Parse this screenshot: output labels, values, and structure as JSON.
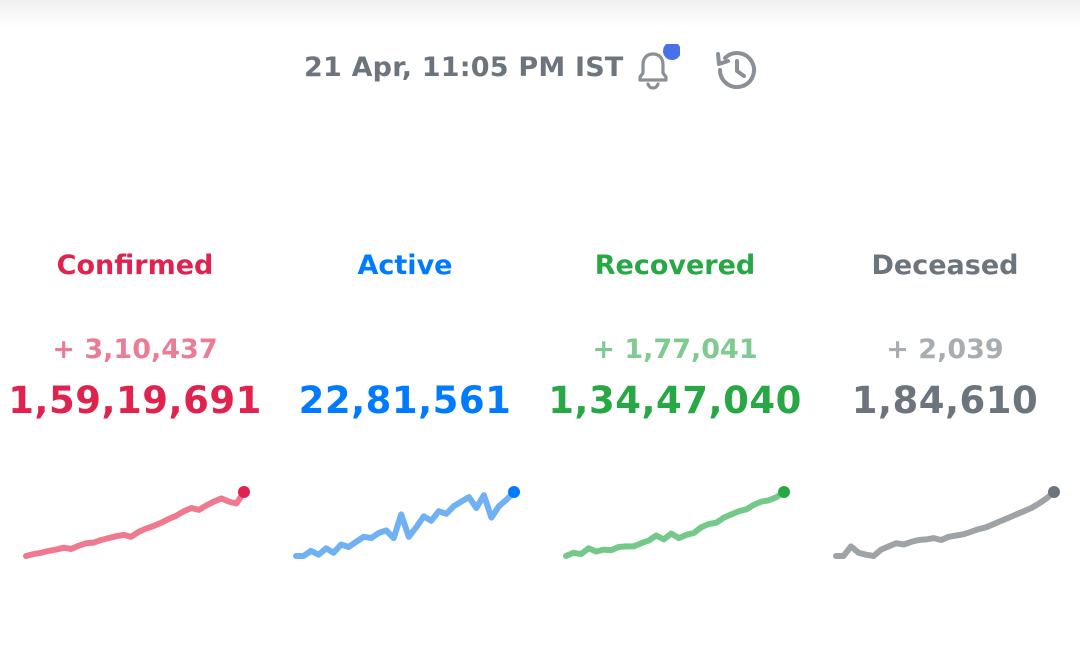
{
  "header": {
    "timestamp": "21 Apr, 11:05 PM IST",
    "notification_dot_color": "#4a72e8",
    "icons": [
      "bell-icon",
      "history-icon"
    ]
  },
  "stats": [
    {
      "key": "confirmed",
      "label": "Confirmed",
      "delta": "+ 3,10,437",
      "total": "1,59,19,691",
      "color": "#e0234e",
      "delta_color": "#ea7d93",
      "line_color": "#ef7a8f",
      "trend": [
        0.0,
        0.03,
        0.05,
        0.08,
        0.1,
        0.13,
        0.11,
        0.16,
        0.2,
        0.21,
        0.25,
        0.28,
        0.31,
        0.33,
        0.3,
        0.38,
        0.43,
        0.47,
        0.52,
        0.58,
        0.63,
        0.7,
        0.75,
        0.72,
        0.79,
        0.85,
        0.9,
        0.85,
        0.82,
        1.0
      ]
    },
    {
      "key": "active",
      "label": "Active",
      "delta": "",
      "total": "22,81,561",
      "color": "#007bff",
      "delta_color": "#6fb1ff",
      "line_color": "#6fb1f2",
      "trend": [
        0.0,
        0.0,
        0.08,
        0.02,
        0.12,
        0.05,
        0.18,
        0.14,
        0.22,
        0.3,
        0.28,
        0.36,
        0.4,
        0.28,
        0.65,
        0.3,
        0.45,
        0.62,
        0.55,
        0.7,
        0.66,
        0.78,
        0.85,
        0.92,
        0.75,
        0.95,
        0.6,
        0.78,
        0.88,
        1.0
      ]
    },
    {
      "key": "recovered",
      "label": "Recovered",
      "delta": "+ 1,77,041",
      "total": "1,34,47,040",
      "color": "#28a745",
      "delta_color": "#7fca8f",
      "line_color": "#74c98a",
      "trend": [
        0.0,
        0.05,
        0.03,
        0.12,
        0.07,
        0.1,
        0.09,
        0.14,
        0.15,
        0.15,
        0.2,
        0.24,
        0.32,
        0.26,
        0.35,
        0.28,
        0.33,
        0.36,
        0.45,
        0.5,
        0.52,
        0.6,
        0.65,
        0.7,
        0.73,
        0.8,
        0.85,
        0.87,
        0.92,
        1.0
      ]
    },
    {
      "key": "deceased",
      "label": "Deceased",
      "delta": "+ 2,039",
      "total": "1,84,610",
      "color": "#6c757d",
      "delta_color": "#a8adb2",
      "line_color": "#9ea3a8",
      "trend": [
        0.0,
        0.0,
        0.15,
        0.05,
        0.02,
        0.0,
        0.1,
        0.15,
        0.2,
        0.18,
        0.22,
        0.25,
        0.26,
        0.28,
        0.25,
        0.3,
        0.32,
        0.34,
        0.38,
        0.42,
        0.45,
        0.5,
        0.55,
        0.6,
        0.65,
        0.7,
        0.75,
        0.82,
        0.9,
        1.0
      ]
    }
  ]
}
